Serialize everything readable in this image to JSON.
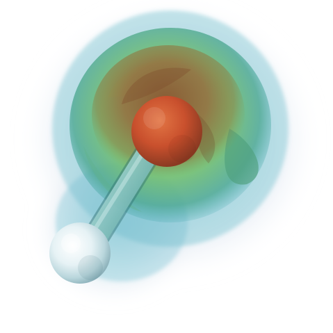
{
  "scene": {
    "background_color": "#ffffff",
    "palette": {
      "outer_halo": "#c9d6e6",
      "cyan_shell": "#66b7c8",
      "green_shell": "#6fbf6a",
      "inner_brown": "#8e5a35",
      "oxygen_atom": "#c9502d",
      "hydrogen_atom": "#e9f3f6",
      "bond": "#8fc9c6"
    },
    "icons": {
      "molecule": "molecule-icon",
      "atom": "atom-icon",
      "bond": "bond-icon",
      "isosurface": "isosurface-icon"
    }
  }
}
